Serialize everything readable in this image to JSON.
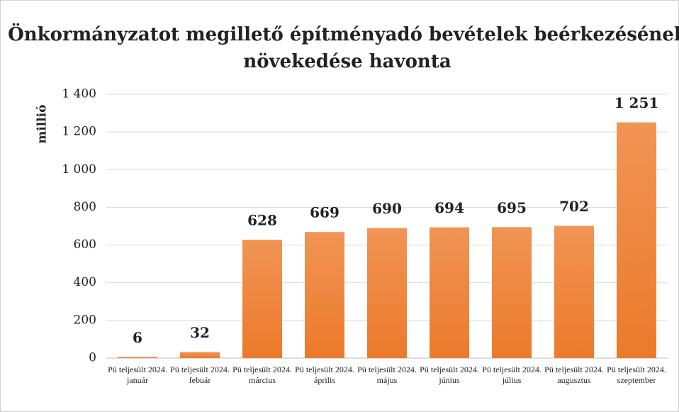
{
  "chart_data": {
    "type": "bar",
    "title": "Önkormányzatot megillető építményadó bevételek beérkezésének növekedése havonta",
    "y_label": "millió",
    "categories": [
      "Pü teljesült 2024. január",
      "Pü teljesült 2024. febuár",
      "Pü teljesült 2024. március",
      "Pü teljesült 2024. április",
      "Pü teljesült 2024. május",
      "Pü teljesült 2024. június",
      "Pü teljesült 2024. július",
      "Pü teljesült 2024. augusztus",
      "Pü teljesült 2024. szeptember"
    ],
    "values": [
      6,
      32,
      628,
      669,
      690,
      694,
      695,
      702,
      1251
    ],
    "value_labels": [
      "6",
      "32",
      "628",
      "669",
      "690",
      "694",
      "695",
      "702",
      "1 251"
    ],
    "color": "#ed7d31",
    "ylim": [
      0,
      1400
    ],
    "yticks": [
      0,
      200,
      400,
      600,
      800,
      {
        "value": 1000,
        "label": "1 000"
      },
      {
        "value": 1200,
        "label": "1 200"
      },
      {
        "value": 1400,
        "label": "1 400"
      }
    ],
    "grid": true
  }
}
